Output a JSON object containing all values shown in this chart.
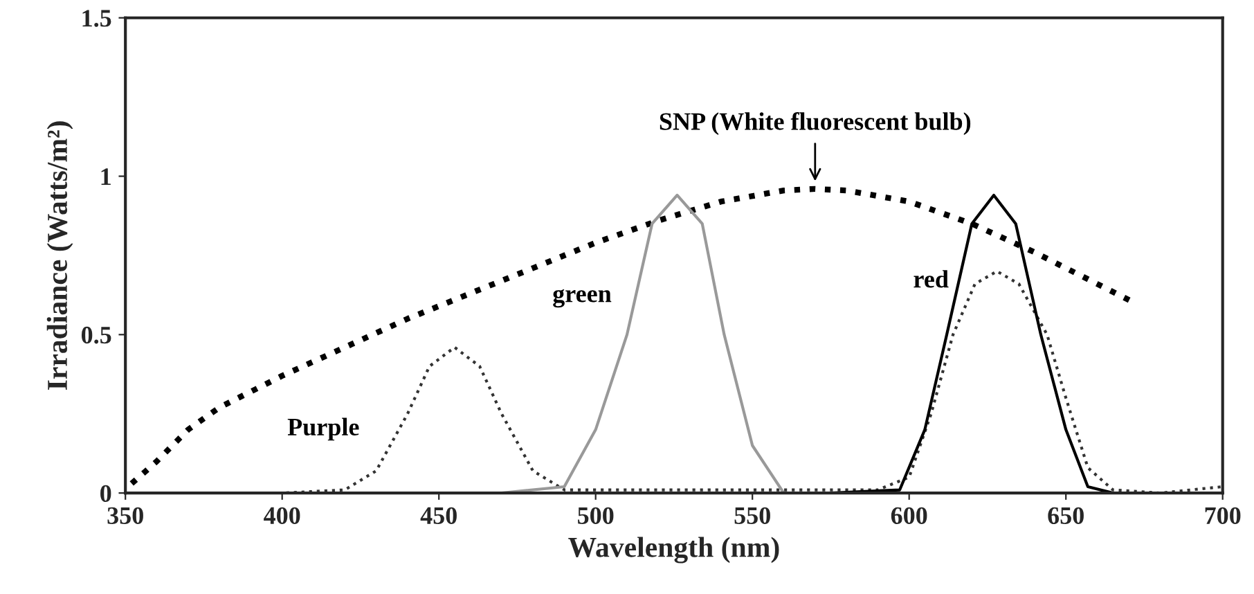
{
  "chart_data": {
    "type": "line",
    "xlabel": "Wavelength (nm)",
    "ylabel": "Irradiance (Watts/m²)",
    "xlim": [
      350,
      700
    ],
    "xticks": [
      350,
      400,
      450,
      500,
      550,
      600,
      650,
      700
    ],
    "ylim": [
      0,
      1.5
    ],
    "yticks": [
      0,
      0.5,
      1,
      1.5
    ],
    "grid": false,
    "legend": false,
    "marker": "none",
    "series": [
      {
        "name": "SNP (White fluorescent bulb)",
        "color": "#000000",
        "line_style": "dotted",
        "x": [
          352,
          360,
          370,
          380,
          400,
          420,
          440,
          460,
          480,
          500,
          520,
          540,
          560,
          570,
          580,
          600,
          620,
          640,
          660,
          672
        ],
        "values": [
          0.03,
          0.1,
          0.2,
          0.27,
          0.37,
          0.46,
          0.55,
          0.63,
          0.71,
          0.79,
          0.86,
          0.92,
          0.955,
          0.96,
          0.955,
          0.92,
          0.85,
          0.76,
          0.66,
          0.6
        ]
      },
      {
        "name": "Purple",
        "color": "#333333",
        "line_style": "dotted",
        "x": [
          355,
          400,
          420,
          430,
          440,
          447,
          455,
          463,
          470,
          480,
          490,
          500,
          550,
          590,
          600,
          607,
          614,
          621,
          628,
          635,
          644,
          650,
          657,
          665,
          680,
          700
        ],
        "values": [
          0.0,
          0.0,
          0.01,
          0.07,
          0.25,
          0.4,
          0.46,
          0.4,
          0.25,
          0.07,
          0.01,
          0.01,
          0.01,
          0.01,
          0.05,
          0.25,
          0.5,
          0.66,
          0.7,
          0.66,
          0.5,
          0.3,
          0.08,
          0.01,
          0.0,
          0.02
        ]
      },
      {
        "name": "green",
        "color": "#999999",
        "line_style": "solid",
        "x": [
          470,
          490,
          500,
          510,
          518,
          526,
          534,
          541,
          550,
          560
        ],
        "values": [
          0.0,
          0.02,
          0.2,
          0.5,
          0.85,
          0.94,
          0.85,
          0.5,
          0.15,
          0.0
        ]
      },
      {
        "name": "red",
        "color": "#000000",
        "line_style": "solid",
        "x": [
          575,
          597,
          605,
          612,
          620,
          627,
          634,
          642,
          650,
          657,
          665
        ],
        "values": [
          0.0,
          0.01,
          0.2,
          0.5,
          0.85,
          0.94,
          0.85,
          0.5,
          0.2,
          0.02,
          0.0
        ]
      }
    ]
  }
}
